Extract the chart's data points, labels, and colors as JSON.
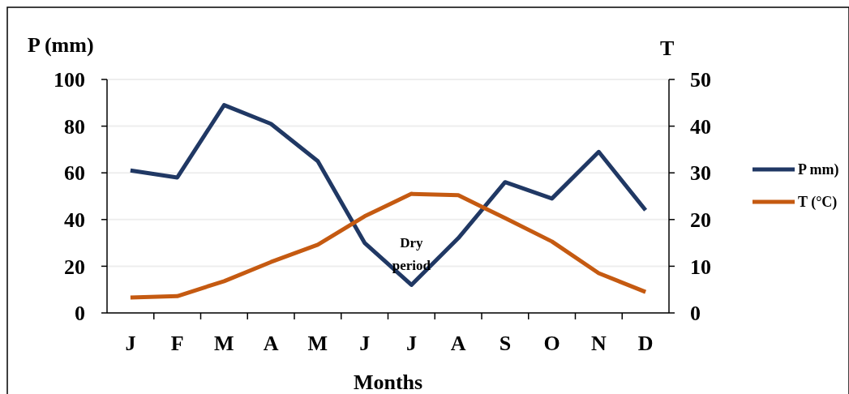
{
  "chart_data": {
    "type": "line",
    "xlabel": "Months",
    "ylabel": "P (mm)",
    "y2label": "T",
    "categories": [
      "J",
      "F",
      "M",
      "A",
      "M",
      "J",
      "J",
      "A",
      "S",
      "O",
      "N",
      "D"
    ],
    "series": [
      {
        "name": "P mm)",
        "color": "#203864",
        "values": [
          61,
          58,
          89,
          81,
          65,
          30,
          12,
          32,
          56,
          49,
          69,
          44
        ]
      },
      {
        "name": "T (°C)",
        "color": "#c55a11",
        "axis": "y2",
        "values": [
          3.3,
          3.6,
          6.8,
          10.9,
          14.6,
          20.7,
          25.5,
          25.2,
          20.3,
          15.3,
          8.5,
          4.5
        ]
      }
    ],
    "ylim": [
      0,
      100
    ],
    "yticks": [
      0,
      20,
      40,
      60,
      80,
      100
    ],
    "y2lim": [
      0,
      50
    ],
    "y2ticks": [
      0,
      10,
      20,
      30,
      40,
      50
    ],
    "grid": "y",
    "legend": "right",
    "marker": "none",
    "line_style": "solid",
    "annotations": [
      "Dry period"
    ]
  }
}
